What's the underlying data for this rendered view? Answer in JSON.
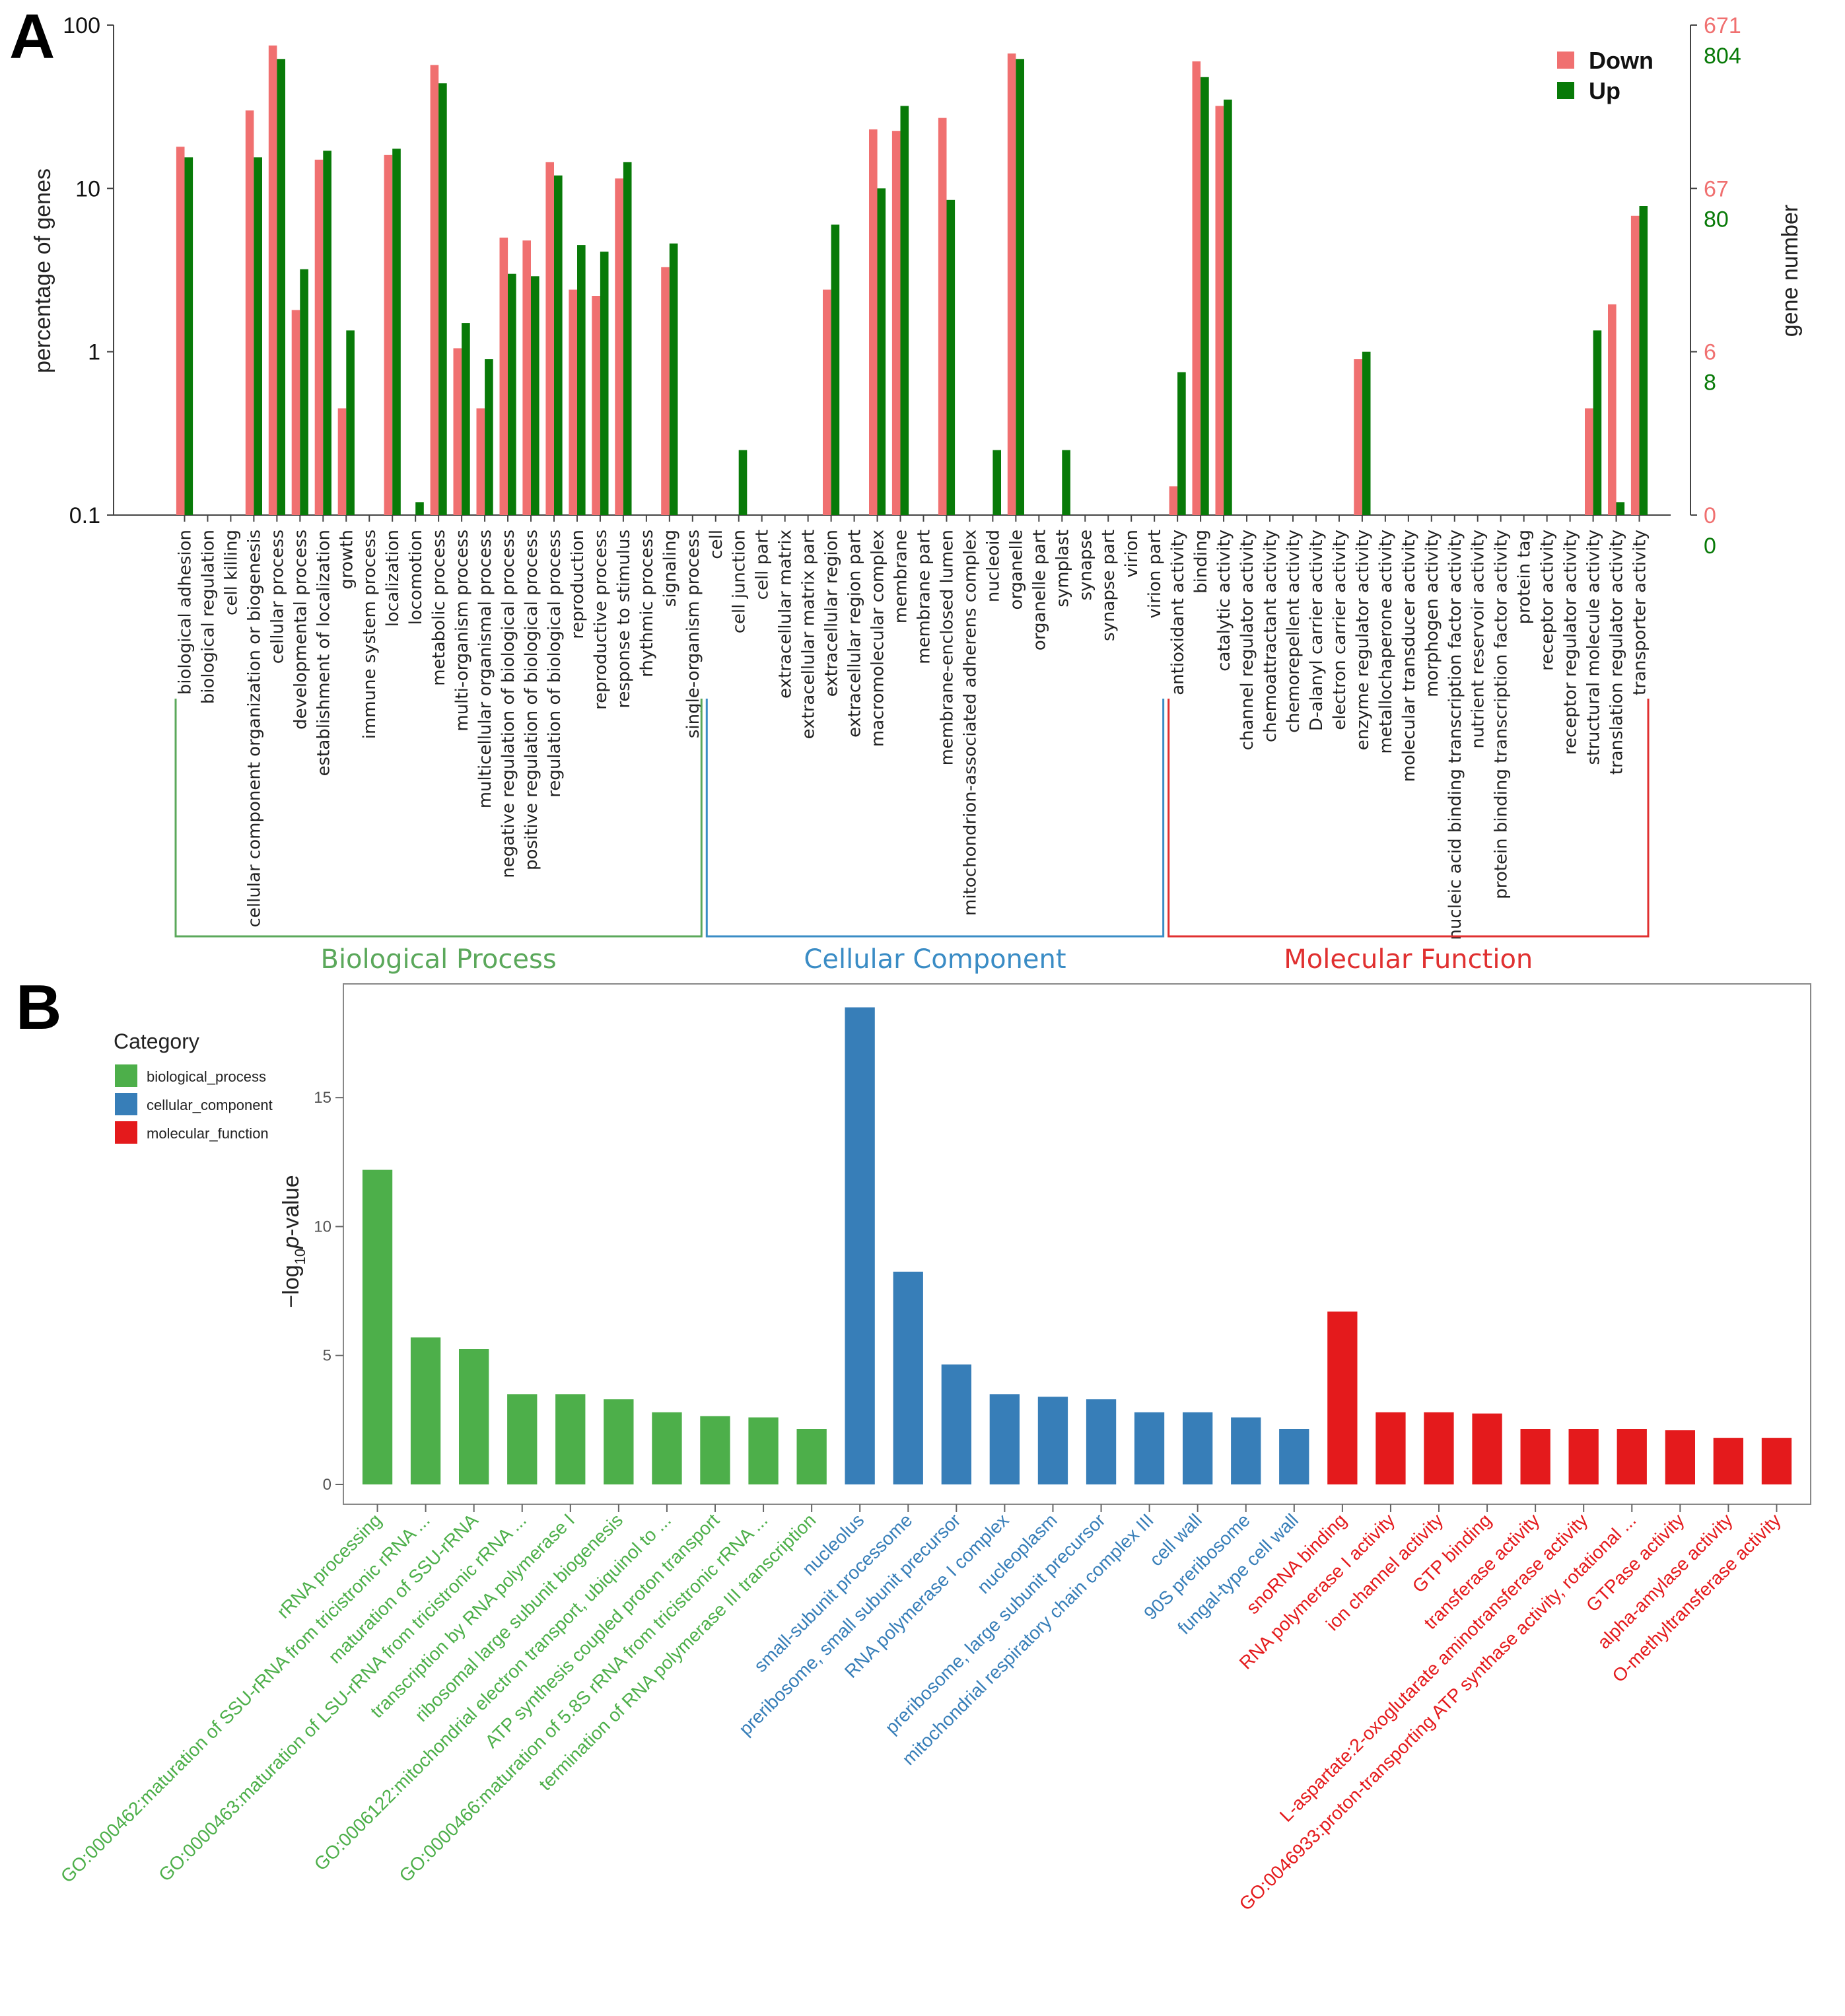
{
  "panelA": {
    "letter": "A",
    "chart_data": {
      "type": "bar",
      "title": "",
      "ylabel": "percentage of genes",
      "ylabel_right": "gene number",
      "yscale": "log",
      "ylim": [
        0.1,
        100
      ],
      "y_ticks": [
        "0.1",
        "1",
        "10",
        "100"
      ],
      "right_ticks_down": [
        "0",
        "6",
        "67",
        "671"
      ],
      "right_ticks_up": [
        "0",
        "8",
        "80",
        "804"
      ],
      "legend": [
        {
          "name": "Down",
          "color": "#F07070"
        },
        {
          "name": "Up",
          "color": "#087A08"
        }
      ],
      "categories": [
        "biological adhesion",
        "biological regulation",
        "cell killing",
        "cellular component organization or biogenesis",
        "cellular process",
        "developmental process",
        "establishment of localization",
        "growth",
        "immune system process",
        "localization",
        "locomotion",
        "metabolic process",
        "multi-organism process",
        "multicellular organismal process",
        "negative regulation of biological process",
        "positive regulation of biological process",
        "regulation of biological process",
        "reproduction",
        "reproductive process",
        "response to stimulus",
        "rhythmic process",
        "signaling",
        "single-organism process",
        "cell",
        "cell junction",
        "cell part",
        "extracellular matrix",
        "extracellular matrix part",
        "extracellular region",
        "extracellular region part",
        "macromolecular complex",
        "membrane",
        "membrane part",
        "membrane-enclosed lumen",
        "mitochondrion-associated adherens complex",
        "nucleoid",
        "organelle",
        "organelle part",
        "symplast",
        "synapse",
        "synapse part",
        "virion",
        "virion part",
        "antioxidant activity",
        "binding",
        "catalytic activity",
        "channel regulator activity",
        "chemoattractant activity",
        "chemorepellent activity",
        "D-alanyl carrier activity",
        "electron carrier activity",
        "enzyme regulator activity",
        "metallochaperone activity",
        "molecular transducer activity",
        "morphogen activity",
        "nucleic acid binding transcription factor activity",
        "nutrient reservoir activity",
        "protein binding transcription factor activity",
        "protein tag",
        "receptor activity",
        "receptor regulator activity",
        "structural molecule activity",
        "translation regulator activity",
        "transporter activity"
      ],
      "series": [
        {
          "name": "Down",
          "values": [
            18,
            null,
            null,
            30,
            75,
            1.8,
            15,
            0.45,
            null,
            16,
            null,
            57,
            1.05,
            0.45,
            5,
            4.8,
            14.5,
            2.4,
            2.2,
            11.5,
            null,
            3.3,
            null,
            null,
            null,
            null,
            null,
            null,
            2.4,
            null,
            23,
            22.5,
            null,
            27,
            null,
            null,
            67,
            null,
            null,
            null,
            null,
            null,
            null,
            0.15,
            60,
            32,
            null,
            null,
            null,
            null,
            null,
            0.9,
            null,
            null,
            null,
            null,
            null,
            null,
            null,
            null,
            null,
            0.45,
            1.95,
            6.8
          ]
        },
        {
          "name": "Up",
          "values": [
            15.5,
            null,
            null,
            15.5,
            62,
            3.2,
            17,
            1.35,
            null,
            17.5,
            0.12,
            44,
            1.5,
            0.9,
            3,
            2.9,
            12,
            4.5,
            4.1,
            14.5,
            null,
            4.6,
            null,
            null,
            0.25,
            null,
            null,
            null,
            6,
            null,
            10,
            32,
            null,
            8.5,
            null,
            0.25,
            62,
            null,
            0.25,
            null,
            null,
            null,
            null,
            0.75,
            48,
            35,
            null,
            null,
            null,
            null,
            null,
            1.0,
            null,
            null,
            null,
            null,
            null,
            null,
            null,
            null,
            null,
            1.35,
            0.12,
            7.8
          ]
        }
      ],
      "groups": [
        {
          "name": "Biological Process",
          "start": 0,
          "end": 22,
          "color": "#5BA85B"
        },
        {
          "name": "Cellular Component",
          "start": 23,
          "end": 42,
          "color": "#3A8CC5"
        },
        {
          "name": "Molecular Function",
          "start": 43,
          "end": 63,
          "color": "#E03030"
        }
      ]
    }
  },
  "panelB": {
    "letter": "B",
    "chart_data": {
      "type": "bar",
      "title": "",
      "ylabel": "−log10 p-value",
      "ylabel_main": "−log",
      "ylabel_sub": "10",
      "ylabel_italic": "p",
      "ylabel_tail": "-value",
      "ylim": [
        0,
        19
      ],
      "y_ticks": [
        "0",
        "5",
        "10",
        "15"
      ],
      "legend_title": "Category",
      "legend": [
        {
          "name": "biological_process",
          "color": "#4DAF4A"
        },
        {
          "name": "cellular_component",
          "color": "#377EB8"
        },
        {
          "name": "molecular_function",
          "color": "#E41A1C"
        }
      ],
      "categories": [
        "rRNA processing",
        "GO:0000462:maturation of SSU-rRNA from tricistronic rRNA ...",
        "maturation of SSU-rRNA",
        "GO:0000463:maturation of LSU-rRNA from tricistronic rRNA ...",
        "transcription by RNA polymerase I",
        "ribosomal large subunit biogenesis",
        "GO:0006122:mitochondrial electron transport, ubiquinol to ...",
        "ATP synthesis coupled proton transport",
        "GO:0000466:maturation of 5.8S rRNA from tricistronic rRNA ...",
        "termination of RNA polymerase III transcription",
        "nucleolus",
        "small-subunit processome",
        "preribosome, small subunit precursor",
        "RNA polymerase I complex",
        "nucleoplasm",
        "preribosome, large subunit precursor",
        "mitochondrial respiratory chain complex III",
        "cell wall",
        "90S preribosome",
        "fungal-type cell wall",
        "snoRNA binding",
        "RNA polymerase I activity",
        "ion channel activity",
        "GTP binding",
        "transferase activity",
        "L-aspartate:2-oxoglutarate aminotransferase activity",
        "GO:0046933:proton-transporting ATP synthase activity, rotational ...",
        "GTPase activity",
        "alpha-amylase activity",
        "O-methyltransferase activity"
      ],
      "values": [
        12.2,
        5.7,
        5.25,
        3.5,
        3.5,
        3.3,
        2.8,
        2.65,
        2.6,
        2.15,
        18.5,
        8.25,
        4.65,
        3.5,
        3.4,
        3.3,
        2.8,
        2.8,
        2.6,
        2.15,
        6.7,
        2.8,
        2.8,
        2.75,
        2.15,
        2.15,
        2.15,
        2.1,
        1.8,
        1.8
      ],
      "category_of_bar": [
        0,
        0,
        0,
        0,
        0,
        0,
        0,
        0,
        0,
        0,
        1,
        1,
        1,
        1,
        1,
        1,
        1,
        1,
        1,
        1,
        2,
        2,
        2,
        2,
        2,
        2,
        2,
        2,
        2,
        2
      ]
    }
  }
}
